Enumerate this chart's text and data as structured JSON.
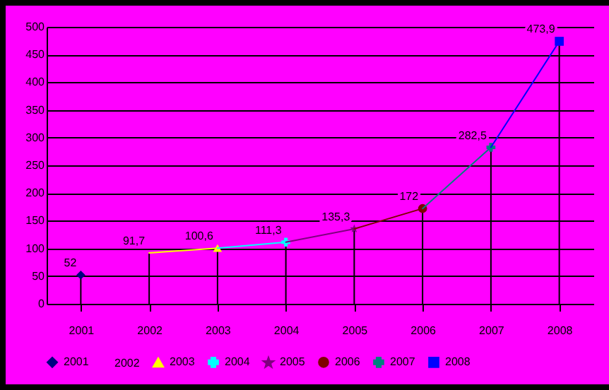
{
  "chart_data": {
    "type": "line",
    "categories": [
      "2001",
      "2002",
      "2003",
      "2004",
      "2005",
      "2006",
      "2007",
      "2008"
    ],
    "ylim": [
      0,
      500
    ],
    "yticks": [
      0,
      50,
      100,
      150,
      200,
      250,
      300,
      350,
      400,
      450,
      500
    ],
    "grid": true,
    "legend": "bottom",
    "series": [
      {
        "name": "2001",
        "color": "#000080",
        "marker": "diamond",
        "values": [
          52,
          null,
          null,
          null,
          null,
          null,
          null,
          null
        ],
        "value_labels": [
          "52",
          null,
          null,
          null,
          null,
          null,
          null,
          null
        ]
      },
      {
        "name": "2002",
        "marker": "none",
        "values": [
          null,
          null,
          null,
          null,
          null,
          null,
          null,
          null
        ]
      },
      {
        "name": "2003",
        "color": "#ffff00",
        "marker": "triangle",
        "values": [
          null,
          91.7,
          100.6,
          null,
          null,
          null,
          null,
          null
        ],
        "value_labels": [
          null,
          "91,7",
          "100,6",
          null,
          null,
          null,
          null,
          null
        ]
      },
      {
        "name": "2004",
        "color": "#00ffff",
        "marker": "cross",
        "values": [
          null,
          null,
          100.6,
          111.3,
          null,
          null,
          null,
          null
        ],
        "value_labels": [
          null,
          null,
          null,
          "111,3",
          null,
          null,
          null,
          null
        ]
      },
      {
        "name": "2005",
        "color": "#800080",
        "marker": "star",
        "values": [
          null,
          null,
          null,
          111.3,
          135.3,
          null,
          null,
          null
        ],
        "value_labels": [
          null,
          null,
          null,
          null,
          "135,3",
          null,
          null,
          null
        ]
      },
      {
        "name": "2006",
        "color": "#800000",
        "marker": "circle",
        "values": [
          null,
          null,
          null,
          null,
          135.3,
          172,
          null,
          null
        ],
        "value_labels": [
          null,
          null,
          null,
          null,
          null,
          "172",
          null,
          null
        ]
      },
      {
        "name": "2007",
        "color": "#008080",
        "marker": "cross",
        "values": [
          null,
          null,
          null,
          null,
          null,
          172,
          282.5,
          null
        ],
        "value_labels": [
          null,
          null,
          null,
          null,
          null,
          null,
          "282,5",
          null
        ]
      },
      {
        "name": "2008",
        "color": "#0000ff",
        "marker": "square",
        "values": [
          null,
          null,
          null,
          null,
          null,
          null,
          282.5,
          473.9
        ],
        "value_labels": [
          null,
          null,
          null,
          null,
          null,
          null,
          null,
          "473,9"
        ]
      }
    ]
  }
}
